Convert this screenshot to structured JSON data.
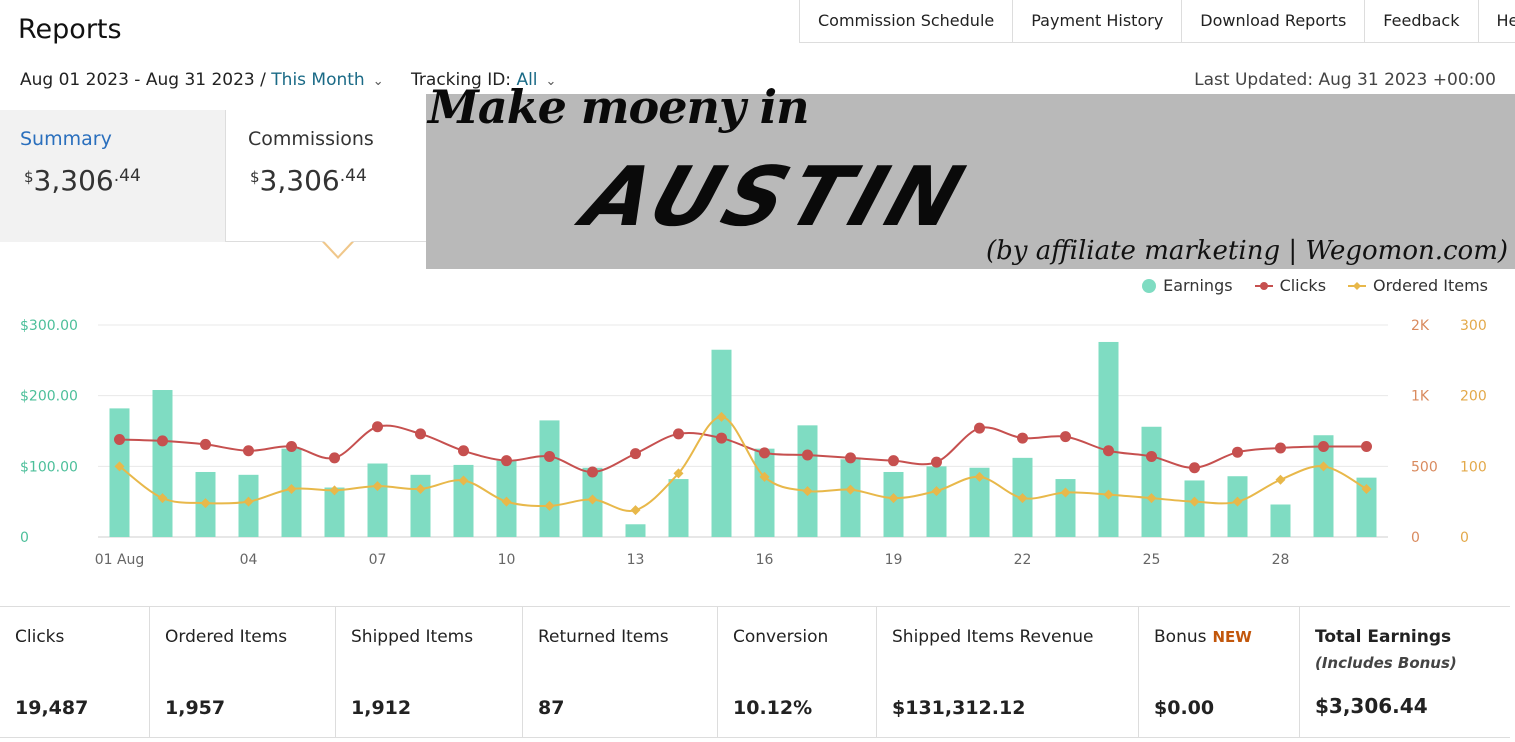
{
  "header": {
    "title": "Reports",
    "nav": [
      "Commission Schedule",
      "Payment History",
      "Download Reports",
      "Feedback",
      "Help"
    ]
  },
  "filters": {
    "date_range": "Aug 01 2023 - Aug 31 2023 /",
    "period": "This Month",
    "tracking_label": "Tracking ID:",
    "tracking_value": "All",
    "last_updated": "Last Updated: Aug 31 2023 +00:00"
  },
  "tabs": [
    {
      "label": "Summary",
      "currency": "$",
      "whole": "3,306",
      "cents": ".44"
    },
    {
      "label": "Commissions",
      "currency": "$",
      "whole": "3,306",
      "cents": ".44"
    }
  ],
  "banner": {
    "line1": "Make moeny in",
    "line2": "AUSTIN",
    "line3": "(by affiliate marketing | Wegomon.com)"
  },
  "colors": {
    "earnings": "#7fdcc2",
    "clicks": "#c6504f",
    "ordered": "#e8b84a",
    "left_axis": "#4cbf9a",
    "right_axis": "#d98a5e"
  },
  "chart_data": {
    "type": "bar",
    "legend_position": "top-right",
    "grid": true,
    "x": [
      "01 Aug",
      "02",
      "03",
      "04",
      "05",
      "06",
      "07",
      "08",
      "09",
      "10",
      "11",
      "12",
      "13",
      "14",
      "15",
      "16",
      "17",
      "18",
      "19",
      "20",
      "21",
      "22",
      "23",
      "24",
      "25",
      "26",
      "27",
      "28",
      "29",
      "30"
    ],
    "x_tick_labels": [
      "01 Aug",
      "04",
      "07",
      "10",
      "13",
      "16",
      "19",
      "22",
      "25",
      "28"
    ],
    "y_left_ticks": [
      "$300.00",
      "$200.00",
      "$100.00",
      "0"
    ],
    "y_right1_ticks": [
      "2K",
      "1K",
      "500",
      "0"
    ],
    "y_right2_ticks": [
      "300",
      "200",
      "100",
      "0"
    ],
    "ylim_left": [
      0,
      300
    ],
    "ylim_clicks": [
      0,
      1500
    ],
    "ylim_ordered": [
      0,
      300
    ],
    "series": [
      {
        "name": "Earnings",
        "type": "bar",
        "axis": "left",
        "values": [
          182,
          208,
          92,
          88,
          125,
          70,
          104,
          88,
          102,
          108,
          165,
          98,
          18,
          82,
          265,
          125,
          158,
          110,
          92,
          100,
          98,
          112,
          82,
          276,
          156,
          80,
          86,
          46,
          144,
          84
        ]
      },
      {
        "name": "Clicks",
        "type": "line",
        "axis": "clicks",
        "values": [
          690,
          680,
          655,
          610,
          640,
          560,
          780,
          730,
          610,
          540,
          570,
          460,
          590,
          730,
          700,
          595,
          580,
          560,
          540,
          530,
          770,
          700,
          710,
          610,
          570,
          490,
          600,
          630,
          640,
          640
        ]
      },
      {
        "name": "Ordered Items",
        "type": "line",
        "axis": "ordered",
        "values": [
          100,
          55,
          48,
          50,
          68,
          66,
          72,
          68,
          80,
          50,
          44,
          53,
          38,
          90,
          170,
          85,
          65,
          67,
          55,
          65,
          85,
          55,
          63,
          60,
          55,
          50,
          50,
          81,
          100,
          68
        ]
      }
    ]
  },
  "stats": [
    {
      "label": "Clicks",
      "value": "19,487"
    },
    {
      "label": "Ordered Items",
      "value": "1,957"
    },
    {
      "label": "Shipped Items",
      "value": "1,912"
    },
    {
      "label": "Returned Items",
      "value": "87"
    },
    {
      "label": "Conversion",
      "value": "10.12%"
    },
    {
      "label": "Shipped Items Revenue",
      "value": "$131,312.12"
    },
    {
      "label": "Bonus",
      "badge": "NEW",
      "value": "$0.00"
    },
    {
      "label": "Total Earnings",
      "sub": "(Includes Bonus)",
      "value": "$3,306.44"
    }
  ]
}
